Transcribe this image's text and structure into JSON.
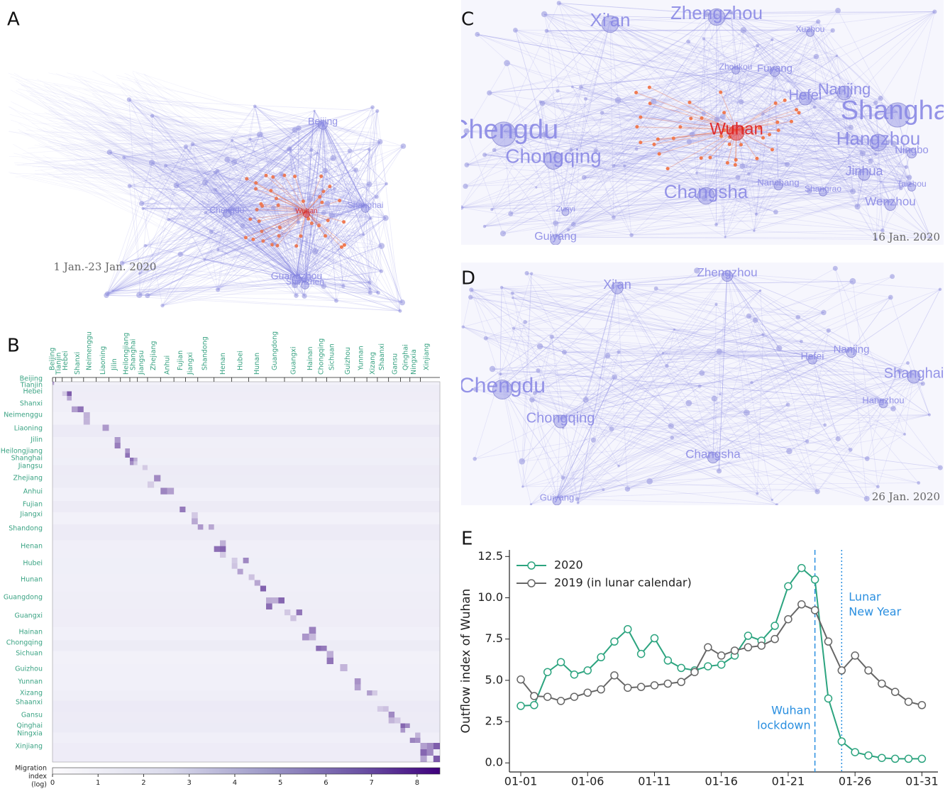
{
  "panel_labels": [
    "A",
    "B",
    "C",
    "D",
    "E"
  ],
  "network_A": {
    "date": "1 Jan.-23 Jan. 2020",
    "nodes": [
      "Beijing",
      "Chengdu",
      "Wuhan",
      "Shanghai",
      "Guangzhou",
      "Shenzhen"
    ]
  },
  "network_C": {
    "date": "16 Jan. 2020",
    "nodes": [
      "Xi'an",
      "Zhengzhou",
      "Chengdu",
      "Chongqing",
      "Wuhan",
      "Hefei",
      "Nanjing",
      "Shanghai",
      "Hangzhou",
      "Ningbo",
      "Jinhua",
      "Changsha",
      "Wenzhou",
      "Guiyang",
      "Fuyang",
      "Zhoukou",
      "Xuzhou",
      "Nanchang",
      "Zunyi",
      "Shangrao",
      "Taizhou"
    ]
  },
  "network_D": {
    "date": "26 Jan. 2020",
    "nodes": [
      "Zhengzhou",
      "Xi'an",
      "Chengdu",
      "Chongqing",
      "Changsha",
      "Hefei",
      "Nanjing",
      "Shanghai",
      "Hangzhou",
      "Guiyang"
    ]
  },
  "chart_data": [
    {
      "type": "heatmap",
      "rows": [
        "Beijing",
        "Tianjin",
        "Hebei",
        "Shanxi",
        "Neimenggu",
        "Liaoning",
        "Jilin",
        "Heilongjiang",
        "Shanghai",
        "Jiangsu",
        "Zhejiang",
        "Anhui",
        "Fujian",
        "Jiangxi",
        "Shandong",
        "Henan",
        "Hubei",
        "Hunan",
        "Guangdong",
        "Guangxi",
        "Hainan",
        "Chongqing",
        "Sichuan",
        "Guizhou",
        "Yunnan",
        "Xizang",
        "Shaanxi",
        "Gansu",
        "Qinghai",
        "Ningxia",
        "Xinjiang"
      ],
      "columns": [
        "Beijing",
        "Tianjin",
        "Hebei",
        "Shanxi",
        "Neimenggu",
        "Liaoning",
        "Jilin",
        "Heilongjiang",
        "Shanghai",
        "Jiangsu",
        "Zhejiang",
        "Anhui",
        "Fujian",
        "Jiangxi",
        "Shandong",
        "Henan",
        "Hubei",
        "Hunan",
        "Guangdong",
        "Guangxi",
        "Hainan",
        "Chongqing",
        "Sichuan",
        "Guizhou",
        "Yunnan",
        "Xizang",
        "Shaanxi",
        "Gansu",
        "Qinghai",
        "Ningxia",
        "Xinjiang"
      ],
      "colorbar_label": [
        "Migration",
        "index",
        "(log)"
      ],
      "clim": [
        0,
        8.5
      ],
      "cticks": [
        0,
        1,
        2,
        3,
        4,
        5,
        6,
        7,
        8
      ]
    },
    {
      "type": "line",
      "ylabel": "Outflow index of Wuhan",
      "x": [
        1,
        2,
        3,
        4,
        5,
        6,
        7,
        8,
        9,
        10,
        11,
        12,
        13,
        14,
        15,
        16,
        17,
        18,
        19,
        20,
        21,
        22,
        23,
        24,
        25,
        26,
        27,
        28,
        29,
        30,
        31
      ],
      "xlim": [
        0.15,
        32.2
      ],
      "xticks": [
        {
          "value": 1,
          "label": "01-01"
        },
        {
          "value": 6,
          "label": "01-06"
        },
        {
          "value": 11,
          "label": "01-11"
        },
        {
          "value": 16,
          "label": "01-16"
        },
        {
          "value": 21,
          "label": "01-21"
        },
        {
          "value": 26,
          "label": "01-26"
        },
        {
          "value": 31,
          "label": "01-31"
        }
      ],
      "ylim": [
        -0.55,
        12.9
      ],
      "yticks": [
        {
          "value": 0,
          "label": "0.0"
        },
        2.5,
        {
          "value": 5,
          "label": "5.0"
        },
        7.5,
        {
          "value": 10,
          "label": "10.0"
        },
        12.5
      ],
      "series": [
        {
          "name": "2020",
          "color": "#2ca47f",
          "values": [
            3.45,
            3.5,
            5.5,
            6.1,
            5.35,
            5.6,
            6.4,
            7.35,
            8.1,
            6.6,
            7.55,
            6.2,
            5.75,
            5.6,
            5.85,
            5.95,
            6.5,
            7.7,
            7.4,
            8.3,
            10.7,
            11.8,
            11.1,
            3.9,
            1.3,
            0.65,
            0.45,
            0.3,
            0.25,
            0.25,
            0.25
          ]
        },
        {
          "name": "2019 (in lunar calendar)",
          "color": "#666666",
          "values": [
            5.05,
            4.05,
            4.0,
            3.75,
            4.0,
            4.25,
            4.45,
            5.3,
            4.55,
            4.6,
            4.7,
            4.8,
            4.9,
            5.5,
            7.0,
            6.5,
            6.8,
            7.0,
            7.1,
            7.5,
            8.7,
            9.6,
            9.25,
            7.35,
            5.6,
            6.5,
            5.6,
            4.8,
            4.3,
            3.7,
            3.5
          ]
        }
      ],
      "annotations": [
        {
          "x": 23,
          "style": "dashed",
          "color": "#2a8fe0",
          "text": [
            "Wuhan",
            "lockdown"
          ]
        },
        {
          "x": 25,
          "style": "dotted",
          "color": "#2a8fe0",
          "text": [
            "Lunar",
            "New Year"
          ]
        }
      ]
    }
  ]
}
